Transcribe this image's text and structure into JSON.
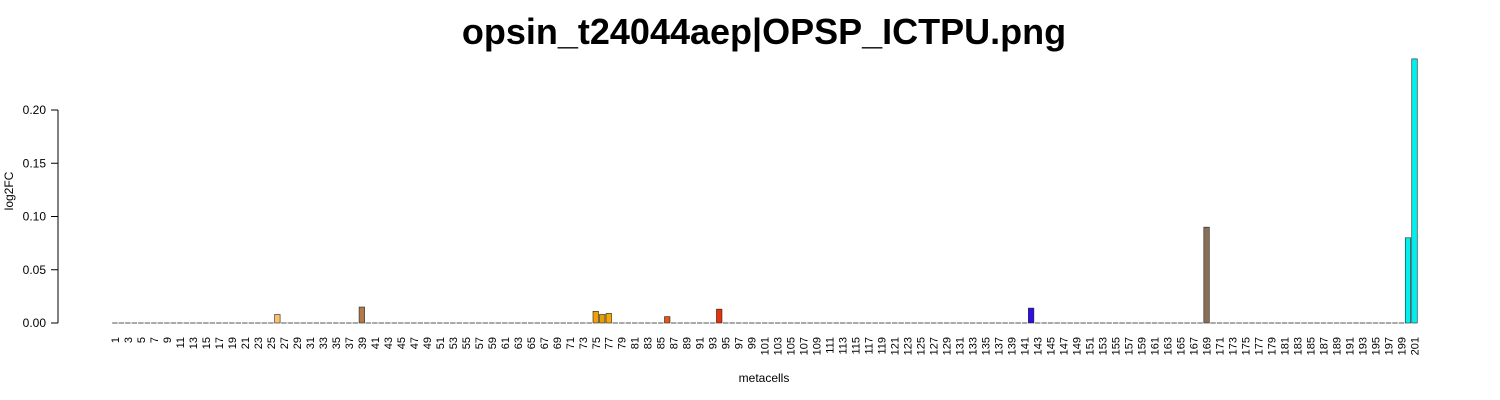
{
  "chart_data": {
    "type": "bar",
    "title": "opsin_t24044aep|OPSP_ICTPU.png",
    "xlabel": "metacells",
    "ylabel": "log2FC",
    "x_range": [
      1,
      201
    ],
    "x_tick_labels": [
      "1",
      "3",
      "5",
      "7",
      "9",
      "11",
      "13",
      "15",
      "17",
      "19",
      "21",
      "23",
      "25",
      "27",
      "29",
      "31",
      "33",
      "35",
      "37",
      "39",
      "41",
      "43",
      "45",
      "47",
      "49",
      "51",
      "53",
      "55",
      "57",
      "59",
      "61",
      "63",
      "65",
      "67",
      "69",
      "71",
      "73",
      "75",
      "77",
      "79",
      "81",
      "83",
      "85",
      "87",
      "89",
      "91",
      "93",
      "95",
      "97",
      "99",
      "101",
      "103",
      "105",
      "107",
      "109",
      "111",
      "113",
      "115",
      "117",
      "119",
      "121",
      "123",
      "125",
      "127",
      "129",
      "131",
      "133",
      "135",
      "137",
      "139",
      "141",
      "143",
      "145",
      "147",
      "149",
      "151",
      "153",
      "155",
      "157",
      "159",
      "161",
      "163",
      "165",
      "167",
      "169",
      "171",
      "173",
      "175",
      "177",
      "179",
      "181",
      "183",
      "185",
      "187",
      "189",
      "191",
      "193",
      "195",
      "197",
      "199",
      "201"
    ],
    "y_ticks": [
      "0.00",
      "0.05",
      "0.10",
      "0.15",
      "0.20"
    ],
    "ylim": [
      0,
      0.25
    ],
    "default_value": 0,
    "nonzero_bars": [
      {
        "x": 26,
        "value": 0.008,
        "color": "#FDBF6F"
      },
      {
        "x": 39,
        "value": 0.015,
        "color": "#B07A4A"
      },
      {
        "x": 75,
        "value": 0.011,
        "color": "#F59E0B"
      },
      {
        "x": 76,
        "value": 0.008,
        "color": "#E69F00"
      },
      {
        "x": 77,
        "value": 0.009,
        "color": "#F5A800"
      },
      {
        "x": 86,
        "value": 0.006,
        "color": "#E8580C"
      },
      {
        "x": 94,
        "value": 0.013,
        "color": "#E8310C"
      },
      {
        "x": 142,
        "value": 0.014,
        "color": "#2E0FE8"
      },
      {
        "x": 169,
        "value": 0.09,
        "color": "#8B6E57"
      },
      {
        "x": 200,
        "value": 0.08,
        "color": "#00F0F0"
      },
      {
        "x": 201,
        "value": 0.248,
        "color": "#00F0F0"
      }
    ],
    "baseline_color": "#555555",
    "grid": false,
    "legend": false
  }
}
